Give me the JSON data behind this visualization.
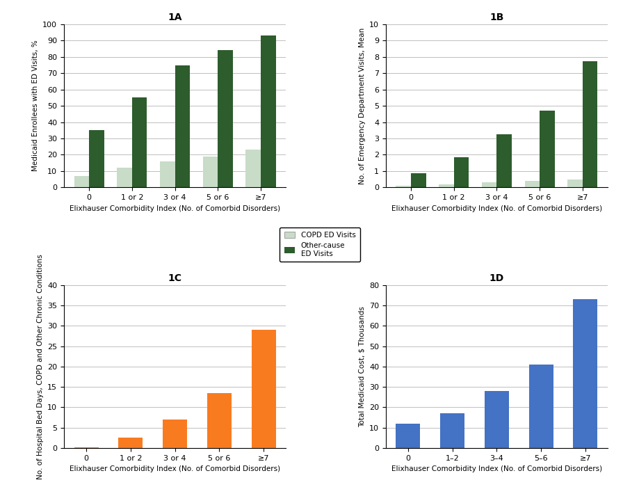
{
  "panel_1A": {
    "title": "1A",
    "categories": [
      "0",
      "1 or 2",
      "3 or 4",
      "5 or 6",
      "≥7"
    ],
    "copd_values": [
      7,
      12,
      16,
      19,
      23
    ],
    "other_values": [
      35,
      55,
      75,
      84,
      93
    ],
    "ylabel": "Medicaid Enrollees with ED Visits, %",
    "xlabel": "Elixhauser Comorbidity Index (No. of Comorbid Disorders)",
    "ylim": [
      0,
      100
    ],
    "yticks": [
      0,
      10,
      20,
      30,
      40,
      50,
      60,
      70,
      80,
      90,
      100
    ]
  },
  "panel_1B": {
    "title": "1B",
    "categories": [
      "0",
      "1 or 2",
      "3 or 4",
      "5 or 6",
      "≥7"
    ],
    "copd_values": [
      0.1,
      0.2,
      0.3,
      0.4,
      0.5
    ],
    "other_values": [
      0.85,
      1.85,
      3.25,
      4.7,
      7.75
    ],
    "ylabel": "No. of Emergency Department Visits, Mean",
    "xlabel": "Elixhauser Comorbidity Index (No. of Comorbid Disorders)",
    "ylim": [
      0,
      10
    ],
    "yticks": [
      0,
      1,
      2,
      3,
      4,
      5,
      6,
      7,
      8,
      9,
      10
    ]
  },
  "panel_1C": {
    "title": "1C",
    "categories": [
      "0",
      "1 or 2",
      "3 or 4",
      "5 or 6",
      "≥7"
    ],
    "values": [
      0.2,
      2.5,
      7.0,
      13.5,
      29.0
    ],
    "ylabel": "No. of Hospital Bed Days, COPD and Other Chronic Conditions",
    "xlabel": "Elixhauser Comorbidity Index (No. of Comorbid Disorders)",
    "ylim": [
      0,
      40
    ],
    "yticks": [
      0,
      5,
      10,
      15,
      20,
      25,
      30,
      35,
      40
    ],
    "bar_color": "#F97B20"
  },
  "panel_1D": {
    "title": "1D",
    "categories": [
      "0",
      "1–2",
      "3–4",
      "5–6",
      "≥7"
    ],
    "values": [
      12,
      17,
      28,
      41,
      73
    ],
    "ylabel": "Total Medicaid Cost, $ Thousands",
    "xlabel": "Elixhauser Comorbidity Index (No. of Comorbid Disorders)",
    "ylim": [
      0,
      80
    ],
    "yticks": [
      0,
      10,
      20,
      30,
      40,
      50,
      60,
      70,
      80
    ],
    "bar_color": "#4472C4"
  },
  "colors": {
    "copd_light_green": "#C8DCC8",
    "other_dark_green": "#2D5C2D",
    "orange": "#F97B20",
    "blue": "#4472C4"
  },
  "legend_labels": {
    "copd": "COPD ED Visits",
    "other": "Other-cause\nED Visits"
  },
  "layout": {
    "hspace": 0.6,
    "wspace": 0.45
  }
}
